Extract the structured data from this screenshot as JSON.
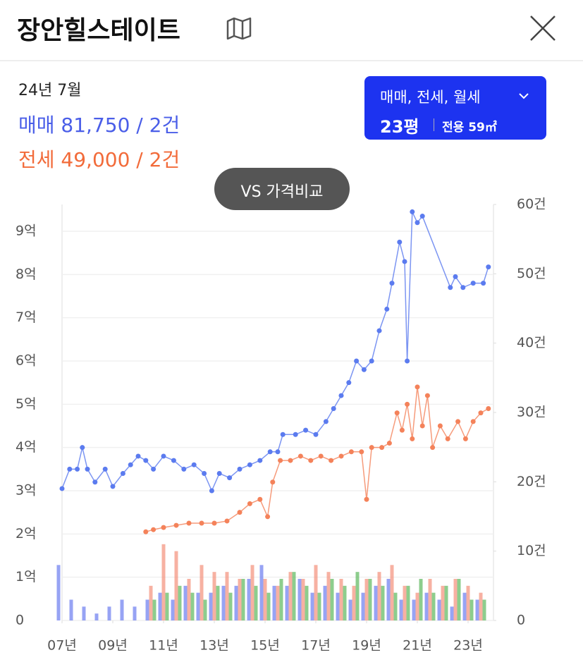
{
  "header": {
    "title": "장안힐스테이트"
  },
  "summary": {
    "date": "24년 7월",
    "trade": "매매 81,750 / 2건",
    "jeonse": "전세 49,000 / 2건"
  },
  "filter": {
    "types": "매매, 전세, 월세",
    "size": "23평",
    "area": "전용 59㎡"
  },
  "compare": "VS 가격비교",
  "chart_data": {
    "type": "line",
    "grid": true,
    "xlim": [
      2007,
      2024
    ],
    "xticks": [
      {
        "value": 2007,
        "label": "07년"
      },
      {
        "value": 2009,
        "label": "09년"
      },
      {
        "value": 2011,
        "label": "11년"
      },
      {
        "value": 2013,
        "label": "13년"
      },
      {
        "value": 2015,
        "label": "15년"
      },
      {
        "value": 2017,
        "label": "17년"
      },
      {
        "value": 2019,
        "label": "19년"
      },
      {
        "value": 2021,
        "label": "21년"
      },
      {
        "value": 2023,
        "label": "23년"
      }
    ],
    "ylim": [
      0,
      96200
    ],
    "yticks": [
      0,
      {
        "value": 10000,
        "label": "1억"
      },
      {
        "value": 20000,
        "label": "2억"
      },
      {
        "value": 30000,
        "label": "3억"
      },
      {
        "value": 40000,
        "label": "4억"
      },
      {
        "value": 50000,
        "label": "5억"
      },
      {
        "value": 60000,
        "label": "6억"
      },
      {
        "value": 70000,
        "label": "7억"
      },
      {
        "value": 80000,
        "label": "8억"
      },
      {
        "value": 90000,
        "label": "9억"
      }
    ],
    "y2lim": [
      0,
      60
    ],
    "y2ticks": [
      0,
      {
        "value": 10,
        "label": "10건"
      },
      {
        "value": 20,
        "label": "20건"
      },
      {
        "value": 30,
        "label": "30건"
      },
      {
        "value": 40,
        "label": "40건"
      },
      {
        "value": 50,
        "label": "50건"
      },
      {
        "value": 60,
        "label": "60건"
      }
    ],
    "series": [
      {
        "type": "bar",
        "axis": "y2",
        "color": "#6b7cf0",
        "x": [
          2007.0,
          2007.5,
          2008.0,
          2008.5,
          2009.0,
          2009.5,
          2010.0,
          2010.5,
          2011.0,
          2011.5,
          2012.0,
          2012.5,
          2013.0,
          2013.5,
          2014.0,
          2014.5,
          2015.0,
          2015.5,
          2016.0,
          2016.5,
          2017.0,
          2017.5,
          2018.0,
          2018.5,
          2019.0,
          2019.5,
          2020.0,
          2020.5,
          2021.0,
          2021.5,
          2022.0,
          2022.5,
          2023.0,
          2023.5
        ],
        "values": [
          8,
          3,
          2,
          1,
          2,
          3,
          2,
          3,
          4,
          3,
          5,
          4,
          4,
          5,
          5,
          6,
          8,
          5,
          5,
          6,
          4,
          5,
          4,
          3,
          4,
          5,
          6,
          3,
          3,
          4,
          3,
          2,
          4,
          3
        ]
      },
      {
        "type": "bar",
        "axis": "y2",
        "color": "#f4907a",
        "x": [
          2007.0,
          2007.5,
          2008.0,
          2008.5,
          2009.0,
          2009.5,
          2010.0,
          2010.5,
          2011.0,
          2011.5,
          2012.0,
          2012.5,
          2013.0,
          2013.5,
          2014.0,
          2014.5,
          2015.0,
          2015.5,
          2016.0,
          2016.5,
          2017.0,
          2017.5,
          2018.0,
          2018.5,
          2019.0,
          2019.5,
          2020.0,
          2020.5,
          2021.0,
          2021.5,
          2022.0,
          2022.5,
          2023.0,
          2023.5
        ],
        "values": [
          0,
          0,
          0,
          0,
          0,
          0,
          0,
          5,
          11,
          10,
          6,
          8,
          7,
          7,
          6,
          8,
          6,
          5,
          7,
          6,
          8,
          7,
          6,
          5,
          6,
          7,
          8,
          5,
          4,
          6,
          5,
          6,
          5,
          4
        ]
      },
      {
        "type": "bar",
        "axis": "y2",
        "color": "#5cb85c",
        "x": [
          2007.0,
          2007.5,
          2008.0,
          2008.5,
          2009.0,
          2009.5,
          2010.0,
          2010.5,
          2011.0,
          2011.5,
          2012.0,
          2012.5,
          2013.0,
          2013.5,
          2014.0,
          2014.5,
          2015.0,
          2015.5,
          2016.0,
          2016.5,
          2017.0,
          2017.5,
          2018.0,
          2018.5,
          2019.0,
          2019.5,
          2020.0,
          2020.5,
          2021.0,
          2021.5,
          2022.0,
          2022.5,
          2023.0,
          2023.5
        ],
        "values": [
          0,
          0,
          0,
          0,
          0,
          0,
          0,
          3,
          4,
          5,
          4,
          3,
          5,
          4,
          6,
          5,
          4,
          6,
          7,
          5,
          4,
          6,
          5,
          7,
          6,
          5,
          4,
          5,
          6,
          4,
          5,
          6,
          3,
          3
        ]
      },
      {
        "type": "line",
        "color": "#5b7bef",
        "x": [
          2007.0,
          2007.3,
          2007.6,
          2007.8,
          2008.0,
          2008.3,
          2008.7,
          2009.0,
          2009.4,
          2009.7,
          2010.0,
          2010.3,
          2010.6,
          2011.0,
          2011.4,
          2011.8,
          2012.2,
          2012.6,
          2012.9,
          2013.2,
          2013.6,
          2014.0,
          2014.4,
          2014.8,
          2015.2,
          2015.5,
          2015.7,
          2016.2,
          2016.6,
          2017.0,
          2017.4,
          2017.7,
          2018.0,
          2018.3,
          2018.6,
          2018.9,
          2019.2,
          2019.5,
          2019.8,
          2020.0,
          2020.3,
          2020.5,
          2020.6,
          2020.8,
          2021.0,
          2021.2,
          2022.3,
          2022.5,
          2022.8,
          2023.2,
          2023.6,
          2023.8
        ],
        "values": [
          30500,
          35000,
          35000,
          40000,
          35000,
          32000,
          35000,
          31000,
          34000,
          36000,
          38000,
          37000,
          35000,
          38000,
          37000,
          35000,
          36000,
          34000,
          30000,
          34000,
          33000,
          35000,
          36000,
          37000,
          39000,
          39000,
          43000,
          43000,
          44000,
          43000,
          46000,
          49000,
          52000,
          55000,
          60000,
          58000,
          60000,
          67000,
          72000,
          78000,
          87500,
          83000,
          60000,
          94500,
          92000,
          93500,
          77000,
          79500,
          77000,
          78000,
          78000,
          81750
        ]
      },
      {
        "type": "line",
        "color": "#f4825a",
        "x": [
          2010.3,
          2010.6,
          2011.0,
          2011.5,
          2012.0,
          2012.5,
          2013.0,
          2013.5,
          2014.0,
          2014.4,
          2014.8,
          2015.1,
          2015.3,
          2015.6,
          2016.0,
          2016.4,
          2016.8,
          2017.2,
          2017.6,
          2018.0,
          2018.4,
          2018.8,
          2019.0,
          2019.2,
          2019.6,
          2019.9,
          2020.2,
          2020.4,
          2020.6,
          2020.8,
          2021.0,
          2021.2,
          2021.4,
          2021.6,
          2021.9,
          2022.2,
          2022.6,
          2022.9,
          2023.2,
          2023.5,
          2023.8
        ],
        "values": [
          20500,
          21000,
          21500,
          22000,
          22500,
          22500,
          22500,
          23000,
          25000,
          27000,
          28000,
          24000,
          32000,
          37000,
          37000,
          38000,
          37000,
          38000,
          37000,
          38000,
          39000,
          39000,
          28000,
          40000,
          40000,
          41000,
          48000,
          44000,
          50000,
          42000,
          54000,
          45000,
          52000,
          40000,
          45000,
          42000,
          46000,
          42000,
          46000,
          48000,
          49000
        ]
      }
    ]
  }
}
